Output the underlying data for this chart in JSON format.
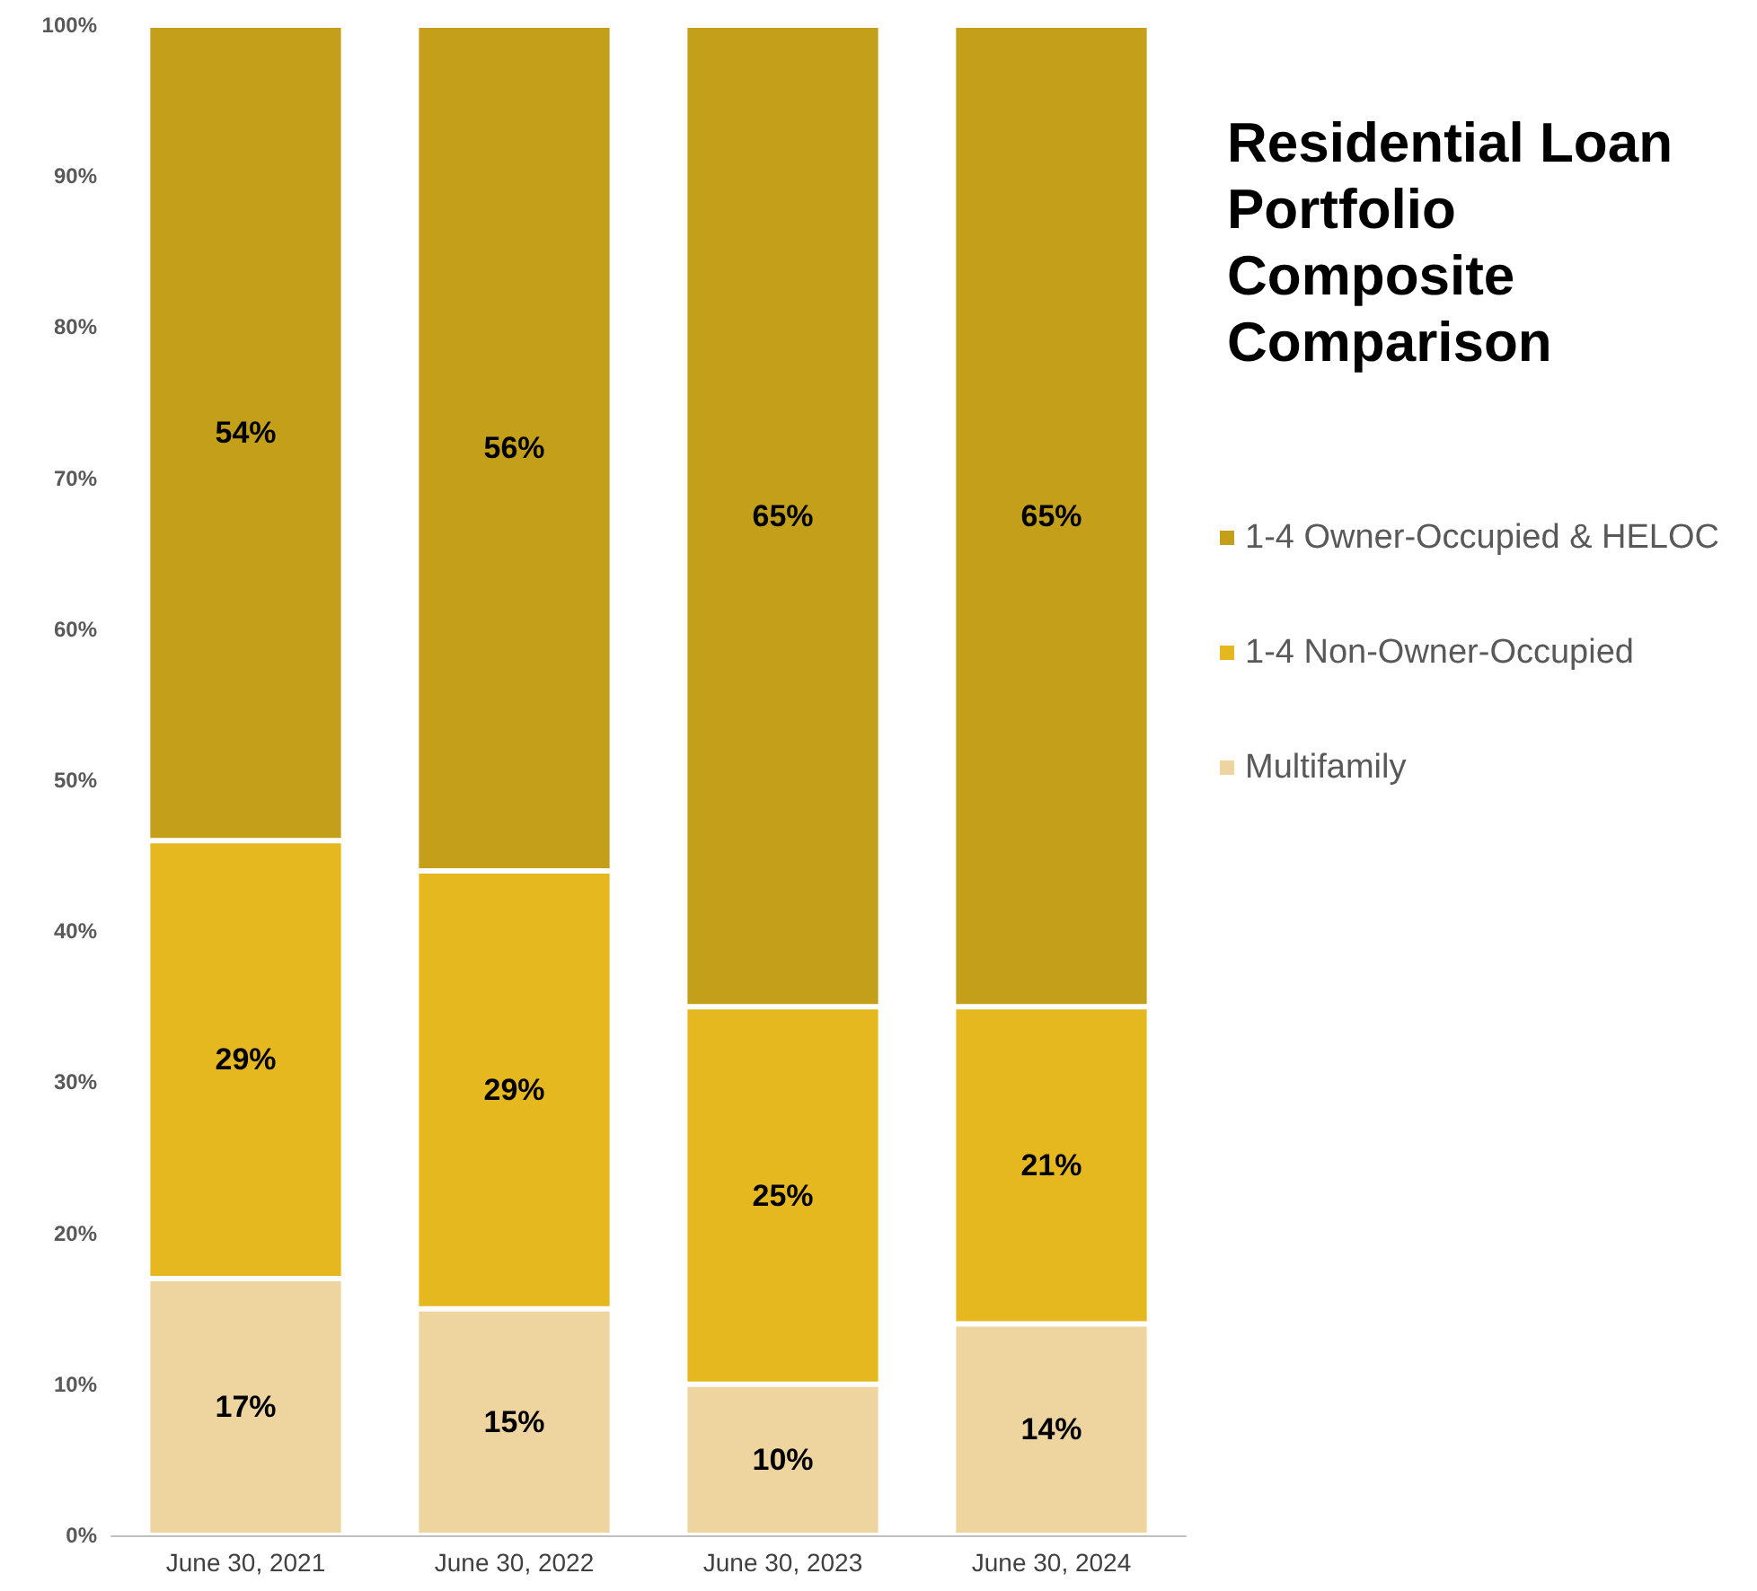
{
  "chart_data": {
    "type": "bar",
    "title": "Residential Loan Portfolio Composite Comparison",
    "stacked": true,
    "categories": [
      "June 30, 2021",
      "June 30, 2022",
      "June 30, 2023",
      "June 30, 2024"
    ],
    "series": [
      {
        "name": "Multifamily",
        "color": "#eed5a0",
        "values": [
          17,
          15,
          10,
          14
        ],
        "value_labels": [
          "17%",
          "15%",
          "10%",
          "14%"
        ]
      },
      {
        "name": "1-4 Non-Owner-Occupied",
        "color": "#e6b820",
        "values": [
          29,
          29,
          25,
          21
        ],
        "value_labels": [
          "29%",
          "29%",
          "25%",
          "21%"
        ]
      },
      {
        "name": "1-4 Owner-Occupied & HELOC",
        "color": "#c4a01a",
        "values": [
          54,
          56,
          65,
          65
        ],
        "value_labels": [
          "54%",
          "56%",
          "65%",
          "65%"
        ]
      }
    ],
    "ylim": [
      0,
      100
    ],
    "yticks": [
      {
        "value": 0,
        "label": "0%"
      },
      {
        "value": 10,
        "label": "10%"
      },
      {
        "value": 20,
        "label": "20%"
      },
      {
        "value": 30,
        "label": "30%"
      },
      {
        "value": 40,
        "label": "40%"
      },
      {
        "value": 50,
        "label": "50%"
      },
      {
        "value": 60,
        "label": "60%"
      },
      {
        "value": 70,
        "label": "70%"
      },
      {
        "value": 80,
        "label": "80%"
      },
      {
        "value": 90,
        "label": "90%"
      },
      {
        "value": 100,
        "label": "100%"
      }
    ],
    "grid": false,
    "legend": "right"
  }
}
